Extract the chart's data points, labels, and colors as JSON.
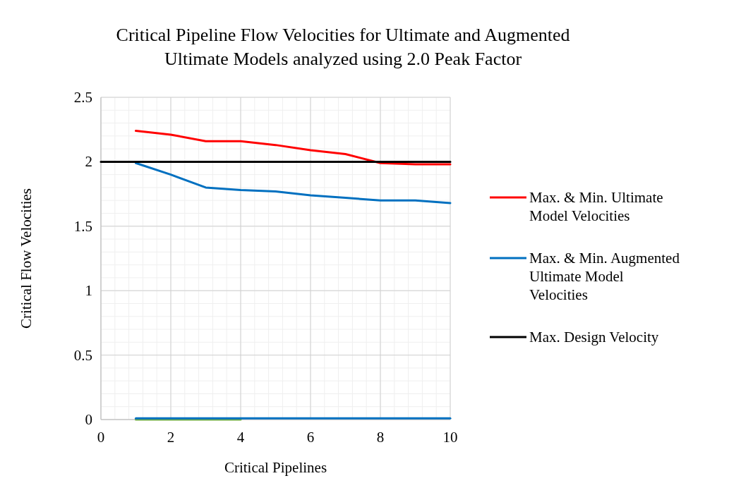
{
  "chart_data": {
    "type": "line",
    "title": "Critical Pipeline Flow Velocities for Ultimate and Augmented Ultimate Models analyzed using 2.0 Peak Factor",
    "xlabel": "Critical Pipelines",
    "ylabel": "Critical Flow Velocities",
    "x": [
      1,
      2,
      3,
      4,
      5,
      6,
      7,
      8,
      9,
      10
    ],
    "series": [
      {
        "name": "Max. & Min. Ultimate Model Velocities",
        "color": "#ff0000",
        "values": [
          2.24,
          2.21,
          2.16,
          2.16,
          2.13,
          2.09,
          2.06,
          1.99,
          1.98,
          1.98
        ]
      },
      {
        "name": "Max. & Min. Augmented Ultimate Model Velocities",
        "color": "#0070c0",
        "values": [
          1.99,
          1.9,
          1.8,
          1.78,
          1.77,
          1.74,
          1.72,
          1.7,
          1.7,
          1.68
        ]
      },
      {
        "color": "#70ad47",
        "values": [
          0,
          0,
          0,
          0,
          null,
          null,
          null,
          null,
          null,
          null
        ]
      },
      {
        "color": "#0070c0",
        "values": [
          0.01,
          0.01,
          0.01,
          0.01,
          0.01,
          0.01,
          0.01,
          0.01,
          0.01,
          0.01
        ]
      },
      {
        "name": "Max. Design Velocity",
        "color": "#000000",
        "x": [
          0,
          10
        ],
        "values": [
          2,
          2
        ]
      }
    ],
    "xlim": [
      0,
      10
    ],
    "xticks": [
      0,
      2,
      4,
      6,
      8,
      10
    ],
    "ylim": [
      0,
      2.5
    ],
    "yticks": [
      0,
      0.5,
      1,
      1.5,
      2,
      2.5
    ],
    "grid": true,
    "legend": "right",
    "marker": "none",
    "line_style": "solid"
  }
}
